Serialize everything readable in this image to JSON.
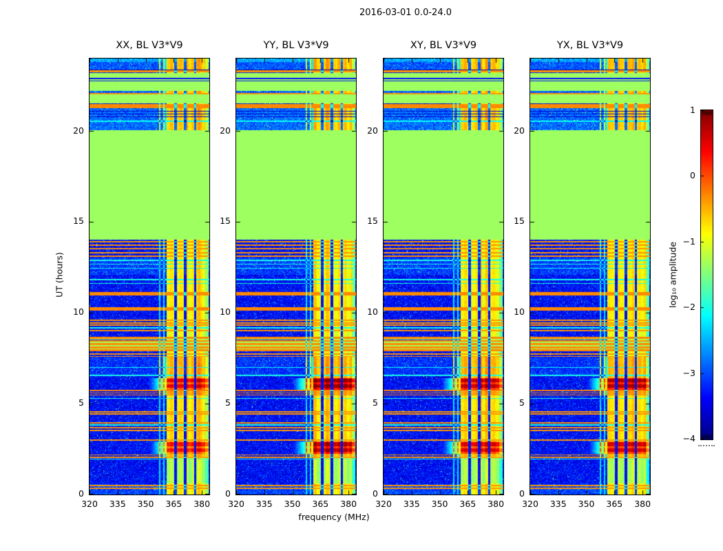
{
  "figure": {
    "suptitle": "2016-03-01 0.0-24.0",
    "background": "#ffffff"
  },
  "chart_data": {
    "type": "heatmap",
    "title": "2016-03-01 0.0-24.0",
    "panels": [
      {
        "title": "XX, BL V3*V9"
      },
      {
        "title": "YY, BL V3*V9"
      },
      {
        "title": "XY, BL V3*V9"
      },
      {
        "title": "YX, BL V3*V9"
      }
    ],
    "x_axis": {
      "label": "frequency (MHz)",
      "range": [
        320,
        384
      ],
      "ticks": [
        320,
        335,
        350,
        365,
        380
      ],
      "tick_labels": [
        "320",
        "335",
        "350",
        "365",
        "380"
      ]
    },
    "y_axis": {
      "label": "UT (hours)",
      "range": [
        0,
        24
      ],
      "ticks": [
        0,
        5,
        10,
        15,
        20
      ],
      "tick_labels": [
        "0",
        "5",
        "10",
        "15",
        "20"
      ]
    },
    "colorbar": {
      "label": "log₁₀ amplitude",
      "range": [
        -4,
        1
      ],
      "colormap": "jet",
      "ticks": [
        1,
        0,
        -1,
        -2,
        -3,
        -4
      ],
      "tick_labels": [
        "1",
        "0",
        "−1",
        "−2",
        "−3",
        "−4"
      ]
    },
    "flagged_level": -1.35,
    "green_blocks": [
      [
        14.02,
        20.05
      ],
      [
        21.52,
        22.02
      ],
      [
        22.22,
        23.22
      ]
    ],
    "noise": {
      "base": -3.35,
      "regions": [
        {
          "t0": 23.8,
          "t1": 24.01,
          "base": -2.55
        },
        {
          "t0": 23.35,
          "t1": 23.8,
          "base": -2.95
        },
        {
          "t0": 22.12,
          "t1": 22.22,
          "base": -2.9
        },
        {
          "t0": 20.05,
          "t1": 21.28,
          "base": -2.85
        },
        {
          "t0": 12.1,
          "t1": 13.05,
          "base": -3.1
        },
        {
          "t0": 6.6,
          "t1": 7.55,
          "base": -3.15
        },
        {
          "t0": 0.0,
          "t1": 0.55,
          "base": -3.05
        }
      ]
    },
    "stripes": [
      {
        "t": 23.3,
        "w": 0.1,
        "level": -0.35
      },
      {
        "t": 23.38,
        "w": 0.06,
        "level": -3.7
      },
      {
        "t": 22.9,
        "w": 0.05,
        "level": -3.3
      },
      {
        "t": 22.77,
        "w": 0.05,
        "level": -3.3
      },
      {
        "t": 22.07,
        "w": 0.1,
        "level": -0.35
      },
      {
        "t": 21.38,
        "w": 0.2,
        "level": -0.3
      },
      {
        "t": 21.1,
        "w": 0.05,
        "level": -3.6
      },
      {
        "t": 20.95,
        "w": 0.05,
        "level": -3.6
      },
      {
        "t": 20.8,
        "w": 0.05,
        "level": -3.6
      },
      {
        "t": 20.55,
        "w": 0.05,
        "level": -2.1
      },
      {
        "t": 13.92,
        "w": 0.1,
        "level": -0.35
      },
      {
        "t": 13.72,
        "w": 0.08,
        "level": -0.35
      },
      {
        "t": 13.52,
        "w": 0.08,
        "level": -0.35
      },
      {
        "t": 13.32,
        "w": 0.08,
        "level": -0.35
      },
      {
        "t": 13.12,
        "w": 0.08,
        "level": -0.35
      },
      {
        "t": 12.88,
        "w": 0.06,
        "level": -2.0
      },
      {
        "t": 12.68,
        "w": 0.06,
        "level": -2.0
      },
      {
        "t": 12.45,
        "w": 0.05,
        "level": -2.1
      },
      {
        "t": 11.82,
        "w": 0.06,
        "level": -2.0
      },
      {
        "t": 11.62,
        "w": 0.06,
        "level": -2.0
      },
      {
        "t": 11.05,
        "w": 0.18,
        "level": -0.3
      },
      {
        "t": 10.22,
        "w": 0.18,
        "level": -0.3
      },
      {
        "t": 9.6,
        "w": 0.09,
        "level": -0.35
      },
      {
        "t": 9.45,
        "w": 0.08,
        "level": -0.35
      },
      {
        "t": 9.32,
        "w": 0.07,
        "level": -0.35
      },
      {
        "t": 9.18,
        "w": 0.06,
        "level": -2.0
      },
      {
        "t": 9.02,
        "w": 0.09,
        "level": -0.35
      },
      {
        "t": 8.64,
        "w": 0.12,
        "level": -0.3
      },
      {
        "t": 8.55,
        "w": 0.07,
        "level": -1.35
      },
      {
        "t": 8.45,
        "w": 0.1,
        "level": -0.3
      },
      {
        "t": 8.37,
        "w": 0.07,
        "level": -1.35
      },
      {
        "t": 8.28,
        "w": 0.1,
        "level": -0.3
      },
      {
        "t": 8.19,
        "w": 0.07,
        "level": -1.35
      },
      {
        "t": 8.1,
        "w": 0.1,
        "level": -0.3
      },
      {
        "t": 8.02,
        "w": 0.06,
        "level": -1.35
      },
      {
        "t": 7.94,
        "w": 0.1,
        "level": -0.3
      },
      {
        "t": 7.74,
        "w": 0.08,
        "level": -0.35
      },
      {
        "t": 7.6,
        "w": 0.07,
        "level": -0.35
      },
      {
        "t": 7.0,
        "w": 0.05,
        "level": -2.1
      },
      {
        "t": 6.55,
        "w": 0.06,
        "level": -2.0
      },
      {
        "t": 5.72,
        "w": 0.07,
        "level": -0.25
      },
      {
        "t": 5.6,
        "w": 0.06,
        "level": -0.25
      },
      {
        "t": 5.48,
        "w": 0.06,
        "level": -0.25
      },
      {
        "t": 5.3,
        "w": 0.05,
        "level": -2.0
      },
      {
        "t": 4.55,
        "w": 0.08,
        "level": -0.35
      },
      {
        "t": 4.42,
        "w": 0.07,
        "level": -0.35
      },
      {
        "t": 3.95,
        "w": 0.08,
        "level": -0.35
      },
      {
        "t": 3.82,
        "w": 0.06,
        "level": -2.0
      },
      {
        "t": 3.68,
        "w": 0.07,
        "level": -0.35
      },
      {
        "t": 3.52,
        "w": 0.07,
        "level": -0.35
      },
      {
        "t": 2.98,
        "w": 0.07,
        "level": -0.35
      },
      {
        "t": 2.18,
        "w": 0.07,
        "level": -0.35
      },
      {
        "t": 2.04,
        "w": 0.06,
        "level": -0.35
      },
      {
        "t": 1.94,
        "w": 0.05,
        "level": -2.0
      },
      {
        "t": 0.5,
        "w": 0.08,
        "level": -0.35
      },
      {
        "t": 0.34,
        "w": 0.07,
        "level": -0.35
      }
    ],
    "band": {
      "f0": 361.3,
      "f1": 383.6,
      "fade_from": 381.8,
      "gaps": [
        365.9,
        371.1,
        376.5
      ],
      "gap_half_width": 0.65,
      "narrow_lines": [
        357.4,
        359.8
      ],
      "default_level": -0.95,
      "profile": [
        {
          "t0": 23.3,
          "t1": 24.01,
          "level": -0.55
        },
        {
          "t0": 22.0,
          "t1": 22.3,
          "level": -0.6
        },
        {
          "t0": 20.05,
          "t1": 21.5,
          "level": -0.6
        },
        {
          "t0": 9.0,
          "t1": 14.02,
          "level": -0.8
        },
        {
          "t0": 6.42,
          "t1": 7.6,
          "level": -0.5
        },
        {
          "t0": 5.5,
          "t1": 5.78,
          "level": -0.45
        },
        {
          "t0": 4.6,
          "t1": 5.5,
          "level": -0.75
        },
        {
          "t0": 2.92,
          "t1": 4.6,
          "level": -0.7
        },
        {
          "t0": 2.05,
          "t1": 2.25,
          "level": -0.6
        },
        {
          "t0": 0.6,
          "t1": 1.9,
          "level": -1.25
        },
        {
          "t0": 0.0,
          "t1": 0.6,
          "level": -0.8
        }
      ]
    },
    "events": [
      {
        "t0": 5.78,
        "t1": 6.42,
        "levels": [
          0.5,
          0.95,
          0.7,
          0.8
        ]
      },
      {
        "t0": 2.25,
        "t1": 2.92,
        "levels": [
          0.35,
          0.75,
          0.55,
          0.6
        ]
      }
    ]
  }
}
